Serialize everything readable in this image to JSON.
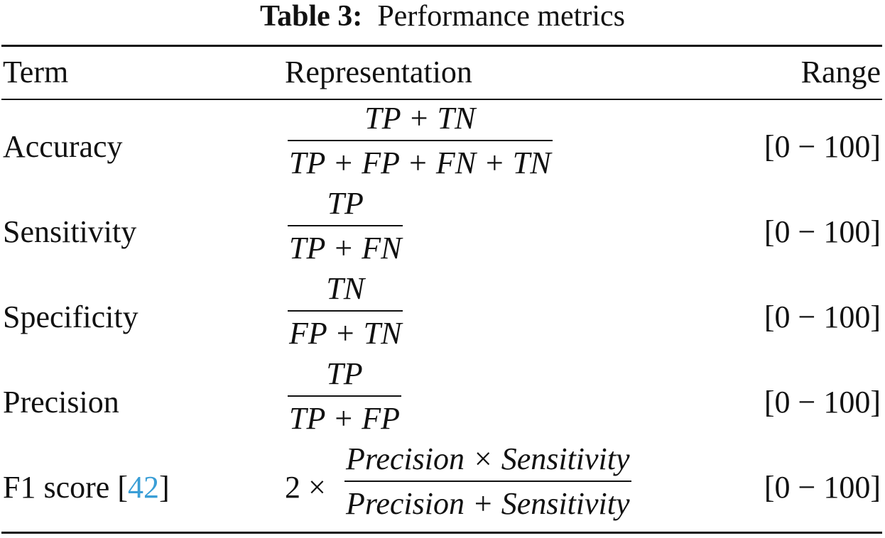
{
  "caption": {
    "label": "Table 3:",
    "text": "Performance metrics"
  },
  "header": {
    "term": "Term",
    "representation": "Representation",
    "range": "Range"
  },
  "rows": [
    {
      "term": "Accuracy",
      "numerator": "TP + TN",
      "denominator": "TP + FP + FN + TN",
      "range": "[0 − 100]"
    },
    {
      "term": "Sensitivity",
      "numerator": "TP",
      "denominator": "TP + FN",
      "range": "[0 − 100]"
    },
    {
      "term": "Specificity",
      "numerator": "TN",
      "denominator": "FP + TN",
      "range": "[0 − 100]"
    },
    {
      "term": "Precision",
      "numerator": "TP",
      "denominator": "TP + FP",
      "range": "[0 − 100]"
    },
    {
      "term": "F1 score",
      "citation": "42",
      "coefficient": "2 ×",
      "numerator": "Precision × Sensitivity",
      "denominator": "Precision + Sensitivity",
      "range": "[0 − 100]"
    }
  ],
  "colors": {
    "citation": "#3a9ed6",
    "text": "#111111"
  }
}
